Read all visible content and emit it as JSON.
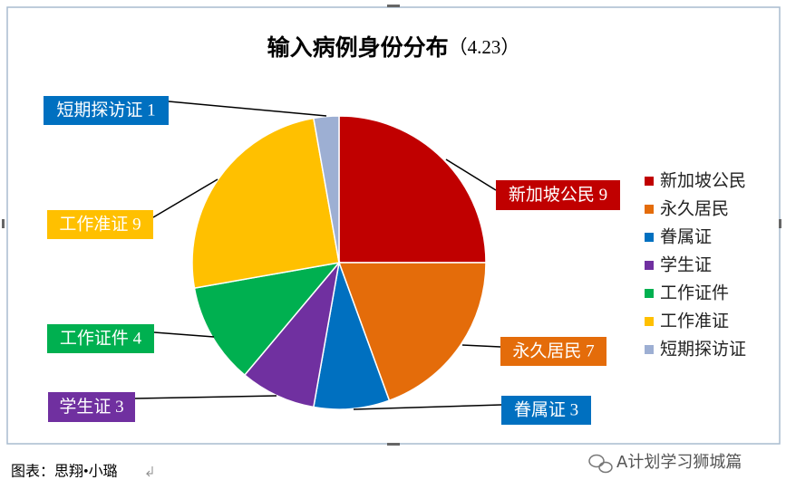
{
  "chart_data": {
    "type": "pie",
    "title": "输入病例身份分布",
    "title_note": "（4.23）",
    "categories": [
      "新加坡公民",
      "永久居民",
      "眷属证",
      "学生证",
      "工作证件",
      "工作准证",
      "短期探访证"
    ],
    "values": [
      9,
      7,
      3,
      3,
      4,
      9,
      1
    ],
    "value_labels": [
      "新加坡公民 9",
      "永久居民 7",
      "眷属证 3",
      "学生证 3",
      "工作证件 4",
      "工作准证 9",
      "短期探访证 1"
    ],
    "colors": [
      "#c00000",
      "#e46c0a",
      "#0070c0",
      "#7030a0",
      "#00b050",
      "#ffc000",
      "#9dafd3"
    ],
    "label_colors": [
      "#c00000",
      "#e46c0a",
      "#0070c0",
      "#7030a0",
      "#00b050",
      "#ffc000",
      "#0070c0"
    ],
    "legend": "right"
  },
  "caption": "图表：思翔•小璐",
  "watermark": "A计划学习狮城篇"
}
